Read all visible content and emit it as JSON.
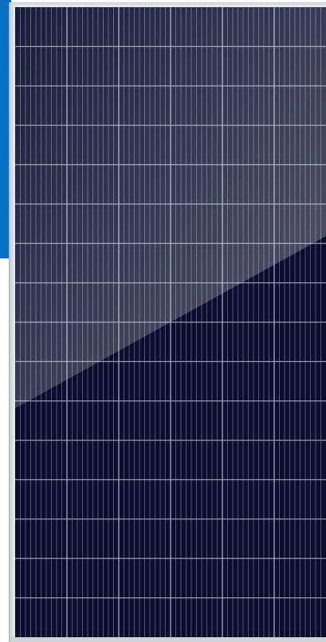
{
  "image": {
    "subject": "solar-panel",
    "colors": {
      "accent_strip": "#0a6fc2",
      "frame": "#d4d8dc",
      "cell": "#0c0d2e",
      "gridline": "#a9b0c2",
      "glare": "#ffffff"
    },
    "cell_grid": {
      "columns": 6,
      "rows": 16,
      "fingers_per_column": 10
    }
  }
}
